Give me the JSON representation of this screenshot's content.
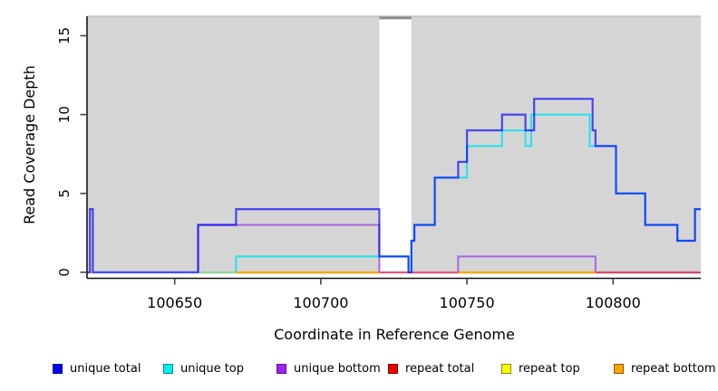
{
  "chart_data": {
    "type": "line",
    "style": "step",
    "title": "",
    "xlabel": "Coordinate in Reference Genome",
    "ylabel": "Read Coverage Depth",
    "xlim": [
      100620,
      100830
    ],
    "ylim": [
      0,
      16.3
    ],
    "x_ticks": [
      100650,
      100700,
      100750,
      100800
    ],
    "y_ticks": [
      0,
      5,
      10,
      15
    ],
    "grid": false,
    "legend_position": "bottom",
    "region_fill": "#D5D5D5",
    "region_top_edge": "#C2C2C2",
    "gap_cap_color": "#8C8C8C",
    "shaded_regions": [
      [
        100620,
        100720
      ],
      [
        100731,
        100830
      ]
    ],
    "gap_region": [
      100720,
      100731
    ],
    "series": [
      {
        "name": "unique total",
        "color": "#0000FF",
        "opacity": 0.68,
        "line_width": 2.2,
        "draw_zero_runs": true,
        "segments": [
          [
            100620,
            0
          ],
          [
            100621,
            4
          ],
          [
            100622,
            0
          ],
          [
            100658,
            3
          ],
          [
            100671,
            4
          ],
          [
            100720,
            1
          ],
          [
            100730,
            0
          ],
          [
            100731,
            2
          ],
          [
            100732,
            3
          ],
          [
            100739,
            6
          ],
          [
            100747,
            7
          ],
          [
            100750,
            9
          ],
          [
            100762,
            10
          ],
          [
            100770,
            9
          ],
          [
            100773,
            11
          ],
          [
            100793,
            9
          ],
          [
            100794,
            8
          ],
          [
            100801,
            5
          ],
          [
            100811,
            3
          ],
          [
            100822,
            2
          ],
          [
            100828,
            4
          ]
        ],
        "end": 100830
      },
      {
        "name": "unique top",
        "color": "#22E2EC",
        "opacity": 1,
        "line_width": 2,
        "draw_zero_runs": false,
        "segments": [
          [
            100620,
            0
          ],
          [
            100671,
            1
          ],
          [
            100730,
            0
          ],
          [
            100731,
            2
          ],
          [
            100732,
            3
          ],
          [
            100739,
            6
          ],
          [
            100750,
            8
          ],
          [
            100762,
            9
          ],
          [
            100770,
            8
          ],
          [
            100772,
            10
          ],
          [
            100792,
            8
          ],
          [
            100801,
            5
          ],
          [
            100811,
            3
          ],
          [
            100822,
            2
          ],
          [
            100828,
            4
          ]
        ],
        "end": 100830
      },
      {
        "name": "unique bottom",
        "color": "#A868E0",
        "opacity": 1,
        "line_width": 2,
        "draw_zero_runs": false,
        "segments": [
          [
            100620,
            0
          ],
          [
            100658,
            3
          ],
          [
            100720,
            0
          ],
          [
            100747,
            1
          ],
          [
            100794,
            0
          ]
        ],
        "end": 100830
      },
      {
        "name": "repeat total",
        "color": "#DC2848",
        "opacity": 1,
        "line_width": 2,
        "draw_zero_runs": false,
        "segments": [
          [
            100620,
            0
          ]
        ],
        "end": 100830
      },
      {
        "name": "repeat top",
        "color": "#F0E000",
        "opacity": 1,
        "line_width": 2,
        "draw_zero_runs": false,
        "segments": [
          [
            100620,
            0
          ]
        ],
        "end": 100830
      },
      {
        "name": "repeat bottom",
        "color": "#FFA500",
        "opacity": 1,
        "line_width": 2,
        "draw_zero_runs": false,
        "segments": [
          [
            100620,
            0
          ]
        ],
        "end": 100830
      }
    ],
    "baseline_segments": [
      {
        "from": 100620,
        "to": 100621,
        "color": "#F0E000"
      },
      {
        "from": 100658,
        "to": 100671,
        "color": "#96D8A0"
      },
      {
        "from": 100671,
        "to": 100720,
        "color": "#FFA500"
      },
      {
        "from": 100720,
        "to": 100747,
        "color": "#E05878"
      },
      {
        "from": 100747,
        "to": 100794,
        "color": "#FFA500"
      },
      {
        "from": 100794,
        "to": 100830,
        "color": "#DC4868"
      }
    ],
    "legend": [
      {
        "label": "unique total",
        "color": "#0000EE",
        "border": "#00008B"
      },
      {
        "label": "unique top",
        "color": "#00EEEE",
        "border": "#008B8B"
      },
      {
        "label": "unique bottom",
        "color": "#A020F0",
        "border": "#551A8B"
      },
      {
        "label": "repeat total",
        "color": "#EE0000",
        "border": "#8B0000"
      },
      {
        "label": "repeat top",
        "color": "#FFFF00",
        "border": "#8B8B00"
      },
      {
        "label": "repeat bottom",
        "color": "#FFA500",
        "border": "#8B5A00"
      }
    ]
  }
}
